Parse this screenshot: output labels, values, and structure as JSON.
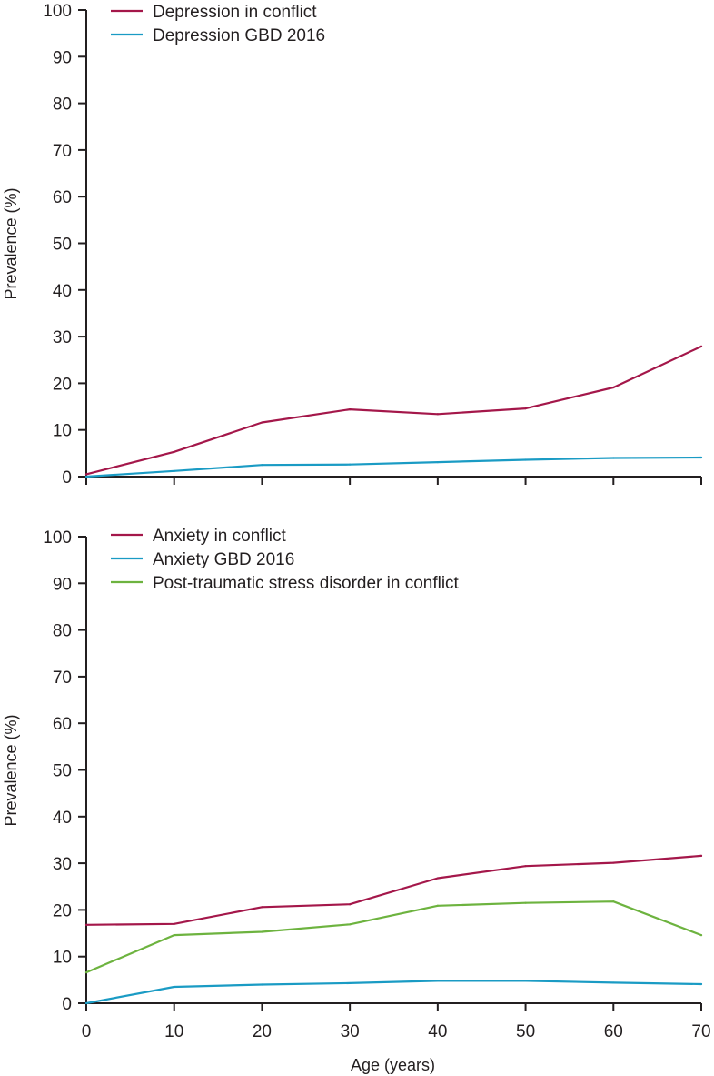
{
  "chart_data": [
    {
      "type": "line",
      "title": "",
      "xlabel": "",
      "ylabel": "Prevalence (%)",
      "xlim": [
        0,
        70
      ],
      "ylim": [
        0,
        100
      ],
      "x": [
        0,
        10,
        20,
        30,
        40,
        50,
        60,
        70
      ],
      "xticks": [
        0,
        10,
        20,
        30,
        40,
        50,
        60,
        70
      ],
      "yticks": [
        0,
        10,
        20,
        30,
        40,
        50,
        60,
        70,
        80,
        90,
        100
      ],
      "show_x_tick_labels": false,
      "grid": false,
      "legend_position": "top-left",
      "series": [
        {
          "name": "Depression in conflict",
          "color": "#a4174a",
          "values": [
            0.5,
            5.3,
            11.6,
            14.4,
            13.4,
            14.6,
            19.1,
            27.9
          ]
        },
        {
          "name": "Depression GBD 2016",
          "color": "#1a9bc4",
          "values": [
            0,
            1.2,
            2.5,
            2.6,
            3.1,
            3.6,
            4.0,
            4.1
          ]
        }
      ]
    },
    {
      "type": "line",
      "title": "",
      "xlabel": "Age (years)",
      "ylabel": "Prevalence (%)",
      "xlim": [
        0,
        70
      ],
      "ylim": [
        0,
        100
      ],
      "x": [
        0,
        10,
        20,
        30,
        40,
        50,
        60,
        70
      ],
      "xticks": [
        0,
        10,
        20,
        30,
        40,
        50,
        60,
        70
      ],
      "yticks": [
        0,
        10,
        20,
        30,
        40,
        50,
        60,
        70,
        80,
        90,
        100
      ],
      "show_x_tick_labels": true,
      "grid": false,
      "legend_position": "top-left",
      "series": [
        {
          "name": "Anxiety in conflict",
          "color": "#a4174a",
          "values": [
            16.8,
            17.0,
            20.6,
            21.2,
            26.8,
            29.4,
            30.1,
            31.6
          ]
        },
        {
          "name": "Anxiety GBD 2016",
          "color": "#1a9bc4",
          "values": [
            0,
            3.5,
            4.0,
            4.3,
            4.8,
            4.8,
            4.4,
            4.1
          ]
        },
        {
          "name": "Post-traumatic stress disorder in conflict",
          "color": "#6db33f",
          "values": [
            6.6,
            14.6,
            15.3,
            16.9,
            20.9,
            21.5,
            21.8,
            14.6
          ]
        }
      ]
    }
  ]
}
